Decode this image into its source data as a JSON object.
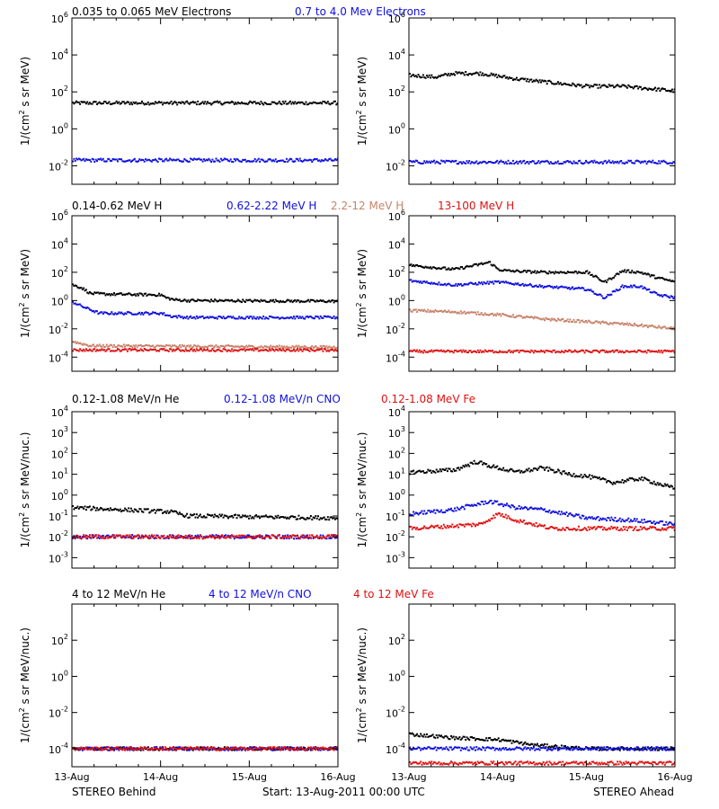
{
  "page": {
    "footer_left": "STEREO Behind",
    "footer_center": "Start: 13-Aug-2011 00:00 UTC",
    "footer_right": "STEREO Ahead"
  },
  "colors": {
    "black": "#000000",
    "blue": "#1010e0",
    "tan": "#c8826a",
    "red": "#e01010"
  },
  "rows": [
    {
      "ylabel_main": "1/(cm",
      "ylabel_sup": "2",
      "ylabel_tail": " s sr MeV)",
      "legend": [
        {
          "text": "0.035 to 0.065 MeV Electrons",
          "color": "black"
        },
        {
          "text": "0.7 to 4.0 Mev Electrons",
          "color": "blue"
        }
      ]
    },
    {
      "ylabel_main": "1/(cm",
      "ylabel_sup": "2",
      "ylabel_tail": " s sr MeV)",
      "legend": [
        {
          "text": "0.14-0.62 MeV H",
          "color": "black"
        },
        {
          "text": "0.62-2.22 MeV H",
          "color": "blue"
        },
        {
          "text": "2.2-12 MeV H",
          "color": "tan"
        },
        {
          "text": "13-100 MeV H",
          "color": "red"
        }
      ]
    },
    {
      "ylabel_main": "1/(cm",
      "ylabel_sup": "2",
      "ylabel_tail": " s sr MeV/nuc.)",
      "legend": [
        {
          "text": "0.12-1.08 MeV/n He",
          "color": "black"
        },
        {
          "text": "0.12-1.08 MeV/n CNO",
          "color": "blue"
        },
        {
          "text": "0.12-1.08 MeV Fe",
          "color": "red"
        }
      ]
    },
    {
      "ylabel_main": "1/(cm",
      "ylabel_sup": "2",
      "ylabel_tail": " s sr MeV/nuc.)",
      "legend": [
        {
          "text": "4 to 12 MeV/n He",
          "color": "black"
        },
        {
          "text": "4 to 12 MeV/n CNO",
          "color": "blue"
        },
        {
          "text": "4 to 12 MeV Fe",
          "color": "red"
        }
      ]
    }
  ],
  "chart_data": [
    {
      "type": "scatter",
      "panel": "electrons-behind",
      "yscale": "log",
      "ylim_exp": [
        -3,
        6
      ],
      "ytick_exps": [
        -2,
        0,
        2,
        4,
        6
      ],
      "x": [
        "13-Aug",
        "14-Aug",
        "15-Aug",
        "16-Aug"
      ],
      "xlim_days": [
        0,
        3
      ],
      "series": [
        {
          "name": "0.035 to 0.065 MeV Electrons",
          "color": "black",
          "t": [
            0,
            3
          ],
          "log10": [
            1.4,
            1.4
          ]
        },
        {
          "name": "0.7 to 4.0 Mev Electrons",
          "color": "blue",
          "t": [
            0,
            3
          ],
          "log10": [
            -1.7,
            -1.7
          ]
        }
      ]
    },
    {
      "type": "scatter",
      "panel": "electrons-ahead",
      "yscale": "log",
      "ylim_exp": [
        -3,
        6
      ],
      "ytick_exps": [
        -2,
        0,
        2,
        4,
        6
      ],
      "x": [
        "13-Aug",
        "14-Aug",
        "15-Aug",
        "16-Aug"
      ],
      "xlim_days": [
        0,
        3
      ],
      "series": [
        {
          "name": "0.035 to 0.065 MeV Electrons",
          "color": "black",
          "t": [
            0,
            0.3,
            0.5,
            0.8,
            1.2,
            1.6,
            2.0,
            2.4,
            3.0
          ],
          "log10": [
            2.9,
            2.8,
            3.0,
            3.0,
            2.7,
            2.5,
            2.3,
            2.3,
            2.05
          ]
        },
        {
          "name": "0.7 to 4.0 Mev Electrons",
          "color": "blue",
          "t": [
            0,
            3
          ],
          "log10": [
            -1.8,
            -1.8
          ]
        }
      ]
    },
    {
      "type": "scatter",
      "panel": "protons-behind",
      "yscale": "log",
      "ylim_exp": [
        -5,
        6
      ],
      "ytick_exps": [
        -4,
        -2,
        0,
        2,
        4,
        6
      ],
      "x": [
        "13-Aug",
        "14-Aug",
        "15-Aug",
        "16-Aug"
      ],
      "xlim_days": [
        0,
        3
      ],
      "series": [
        {
          "name": "0.14-0.62 MeV H",
          "color": "black",
          "t": [
            0,
            0.1,
            0.2,
            0.4,
            1.0,
            1.05,
            1.15,
            1.3,
            3.0
          ],
          "log10": [
            1.1,
            0.9,
            0.5,
            0.45,
            0.4,
            0.2,
            0.05,
            0.0,
            -0.05
          ]
        },
        {
          "name": "0.62-2.22 MeV H",
          "color": "blue",
          "t": [
            0,
            0.1,
            0.3,
            1.0,
            1.1,
            1.3,
            3.0
          ],
          "log10": [
            -0.1,
            -0.4,
            -0.9,
            -0.9,
            -1.1,
            -1.2,
            -1.2
          ]
        },
        {
          "name": "2.2-12 MeV H",
          "color": "tan",
          "t": [
            0,
            0.2,
            3.0
          ],
          "log10": [
            -2.9,
            -3.2,
            -3.3
          ]
        },
        {
          "name": "13-100 MeV H",
          "color": "red",
          "t": [
            0,
            3.0
          ],
          "log10": [
            -3.5,
            -3.5
          ]
        }
      ]
    },
    {
      "type": "scatter",
      "panel": "protons-ahead",
      "yscale": "log",
      "ylim_exp": [
        -5,
        6
      ],
      "ytick_exps": [
        -4,
        -2,
        0,
        2,
        4,
        6
      ],
      "x": [
        "13-Aug",
        "14-Aug",
        "15-Aug",
        "16-Aug"
      ],
      "xlim_days": [
        0,
        3
      ],
      "series": [
        {
          "name": "0.14-0.62 MeV H",
          "color": "black",
          "t": [
            0,
            0.5,
            0.9,
            1.0,
            1.1,
            1.5,
            2.0,
            2.2,
            2.4,
            2.6,
            2.8,
            3.0
          ],
          "log10": [
            2.5,
            2.2,
            2.7,
            2.2,
            2.1,
            2.0,
            2.0,
            1.3,
            2.1,
            2.0,
            1.6,
            1.3
          ]
        },
        {
          "name": "0.62-2.22 MeV H",
          "color": "blue",
          "t": [
            0,
            0.5,
            1.0,
            1.5,
            2.0,
            2.2,
            2.4,
            2.6,
            2.8,
            3.0
          ],
          "log10": [
            1.4,
            1.1,
            1.3,
            1.0,
            0.8,
            0.2,
            1.0,
            1.0,
            0.4,
            0.2
          ]
        },
        {
          "name": "2.2-12 MeV H",
          "color": "tan",
          "t": [
            0,
            0.5,
            1.0,
            1.5,
            2.0,
            2.5,
            3.0
          ],
          "log10": [
            -0.7,
            -0.8,
            -1.0,
            -1.3,
            -1.5,
            -1.7,
            -2.0
          ]
        },
        {
          "name": "13-100 MeV H",
          "color": "red",
          "t": [
            0,
            3.0
          ],
          "log10": [
            -3.6,
            -3.6
          ]
        }
      ]
    },
    {
      "type": "scatter",
      "panel": "suprathermal-behind",
      "yscale": "log",
      "ylim_exp": [
        -3.5,
        4
      ],
      "ytick_exps": [
        -3,
        -2,
        -1,
        0,
        1,
        2,
        3,
        4
      ],
      "x": [
        "13-Aug",
        "14-Aug",
        "15-Aug",
        "16-Aug"
      ],
      "xlim_days": [
        0,
        3
      ],
      "series": [
        {
          "name": "0.12-1.08 MeV/n He",
          "color": "black",
          "t": [
            0,
            1.1,
            1.3,
            3.0
          ],
          "log10": [
            -0.6,
            -0.8,
            -1.0,
            -1.1
          ]
        },
        {
          "name": "0.12-1.08 MeV/n CNO",
          "color": "blue",
          "t": [
            0,
            3.0
          ],
          "log10": [
            -2.0,
            -2.0
          ]
        },
        {
          "name": "0.12-1.08 MeV Fe",
          "color": "red",
          "t": [
            0,
            3.0
          ],
          "log10": [
            -2.0,
            -2.0
          ]
        }
      ]
    },
    {
      "type": "scatter",
      "panel": "suprathermal-ahead",
      "yscale": "log",
      "ylim_exp": [
        -3.5,
        4
      ],
      "ytick_exps": [
        -3,
        -2,
        -1,
        0,
        1,
        2,
        3,
        4
      ],
      "x": [
        "13-Aug",
        "14-Aug",
        "15-Aug",
        "16-Aug"
      ],
      "xlim_days": [
        0,
        3
      ],
      "series": [
        {
          "name": "0.12-1.08 MeV/n He",
          "color": "black",
          "t": [
            0,
            0.5,
            0.75,
            0.9,
            1.2,
            1.5,
            1.8,
            2.0,
            2.3,
            2.6,
            3.0
          ],
          "log10": [
            1.1,
            1.2,
            1.6,
            1.4,
            1.1,
            1.3,
            1.0,
            0.9,
            0.6,
            0.8,
            0.3
          ]
        },
        {
          "name": "0.12-1.08 MeV/n CNO",
          "color": "blue",
          "t": [
            0,
            0.5,
            0.9,
            1.2,
            1.5,
            2.0,
            2.5,
            3.0
          ],
          "log10": [
            -0.9,
            -0.7,
            -0.3,
            -0.6,
            -0.7,
            -1.1,
            -1.2,
            -1.4
          ]
        },
        {
          "name": "0.12-1.08 MeV Fe",
          "color": "red",
          "t": [
            0,
            0.8,
            1.0,
            1.2,
            1.6,
            3.0
          ],
          "log10": [
            -1.6,
            -1.4,
            -0.9,
            -1.2,
            -1.6,
            -1.6
          ]
        }
      ]
    },
    {
      "type": "scatter",
      "panel": "heavy-ions-behind",
      "yscale": "log",
      "ylim_exp": [
        -5,
        4
      ],
      "ytick_exps": [
        -4,
        -2,
        0,
        2
      ],
      "x": [
        "13-Aug",
        "14-Aug",
        "15-Aug",
        "16-Aug"
      ],
      "xlim_days": [
        0,
        3
      ],
      "series": [
        {
          "name": "4 to 12 MeV/n He",
          "color": "black",
          "t": [
            0,
            3.0
          ],
          "log10": [
            -4.0,
            -4.0
          ]
        },
        {
          "name": "4 to 12 MeV/n CNO",
          "color": "blue",
          "t": [
            0,
            3.0
          ],
          "log10": [
            -4.0,
            -4.0
          ]
        },
        {
          "name": "4 to 12 MeV Fe",
          "color": "red",
          "t": [
            0,
            3.0
          ],
          "log10": [
            -4.0,
            -4.0
          ]
        }
      ]
    },
    {
      "type": "scatter",
      "panel": "heavy-ions-ahead",
      "yscale": "log",
      "ylim_exp": [
        -5,
        4
      ],
      "ytick_exps": [
        -4,
        -2,
        0,
        2
      ],
      "x": [
        "13-Aug",
        "14-Aug",
        "15-Aug",
        "16-Aug"
      ],
      "xlim_days": [
        0,
        3
      ],
      "series": [
        {
          "name": "4 to 12 MeV/n He",
          "color": "black",
          "t": [
            0,
            0.5,
            1.0,
            1.4,
            2.0,
            3.0
          ],
          "log10": [
            -3.2,
            -3.4,
            -3.5,
            -3.8,
            -4.0,
            -4.0
          ]
        },
        {
          "name": "4 to 12 MeV/n CNO",
          "color": "blue",
          "t": [
            0,
            3.0
          ],
          "log10": [
            -4.0,
            -4.0
          ]
        },
        {
          "name": "4 to 12 MeV Fe",
          "color": "red",
          "t": [
            0,
            3.0
          ],
          "log10": [
            -4.8,
            -4.8
          ]
        }
      ]
    }
  ]
}
